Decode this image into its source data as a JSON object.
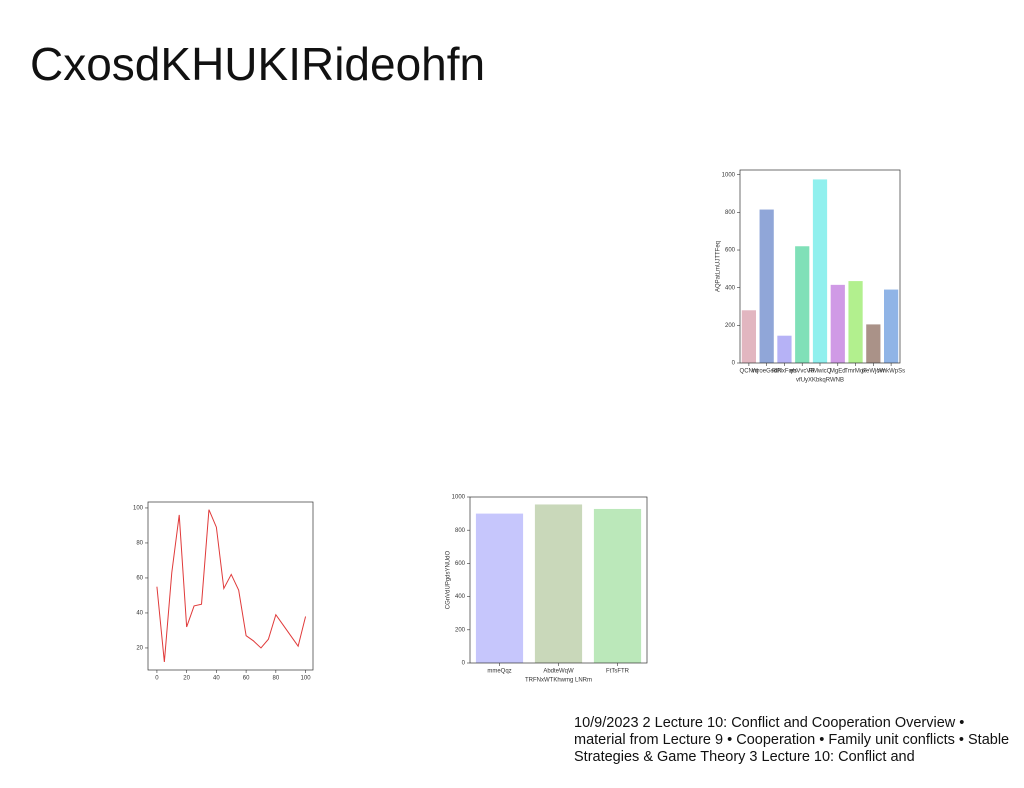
{
  "slide": {
    "title": "CxosdKHUKIRideohfn",
    "footer": "10/9/2023 2 Lecture 10: Conflict and Cooperation Overview • material from Lecture 9 • Cooperation • Family unit conflicts • Stable Strategies & Game Theory 3 Lecture 10: Conflict and"
  },
  "chart_data": [
    {
      "type": "bar",
      "xlabel": "vfUyXKbkqRWNB",
      "ylabel": "AQPatLmUJTTFeq",
      "categories": [
        "QCNrq",
        "WroeGsdR",
        "RiNxFqrs",
        "ebVvcVR",
        "RMwicQ",
        "MgEd",
        "TmrMoF",
        "jxeWjcW",
        "WnkWpSs"
      ],
      "series": [
        {
          "values": [
            280,
            815,
            145,
            620,
            975,
            415,
            435,
            205,
            390
          ],
          "colors": [
            "#e2b6c0",
            "#90a6d8",
            "#b6b2f6",
            "#80e0b8",
            "#90f0ee",
            "#d09ae6",
            "#b2f08e",
            "#aa9288",
            "#90b4e6"
          ]
        }
      ],
      "ylim": [
        0,
        1025
      ],
      "yticks": [
        0,
        200,
        400,
        600,
        800,
        1000
      ]
    },
    {
      "type": "line",
      "color": "#e03a3a",
      "x": [
        0,
        5,
        10,
        15,
        20,
        25,
        30,
        35,
        40,
        45,
        50,
        55,
        60,
        65,
        70,
        75,
        80,
        85,
        90,
        95,
        100
      ],
      "values": [
        55,
        12,
        63,
        96,
        32,
        44,
        45,
        99,
        89,
        54,
        62,
        53,
        27,
        24,
        20,
        25,
        39,
        33,
        27,
        21,
        38
      ],
      "xlim": [
        -6,
        105
      ],
      "xticks": [
        0,
        20,
        40,
        60,
        80,
        100
      ],
      "ylim": [
        7.4,
        103.4
      ],
      "yticks": [
        20,
        40,
        60,
        80,
        100
      ]
    },
    {
      "type": "bar",
      "xlabel": "TRFNxWTKhwmg LNRm",
      "ylabel": "CGnVdUPgdsYNUdO",
      "categories": [
        "mmeQqz",
        "AbdteWqW",
        "FtTsFTR"
      ],
      "series": [
        {
          "values": [
            900,
            955,
            928
          ],
          "colors": [
            "#c6c6fc",
            "#c9d8ba",
            "#bbe8ba"
          ]
        }
      ],
      "ylim": [
        0,
        1000
      ],
      "yticks": [
        0,
        200,
        400,
        600,
        800,
        1000
      ]
    }
  ]
}
